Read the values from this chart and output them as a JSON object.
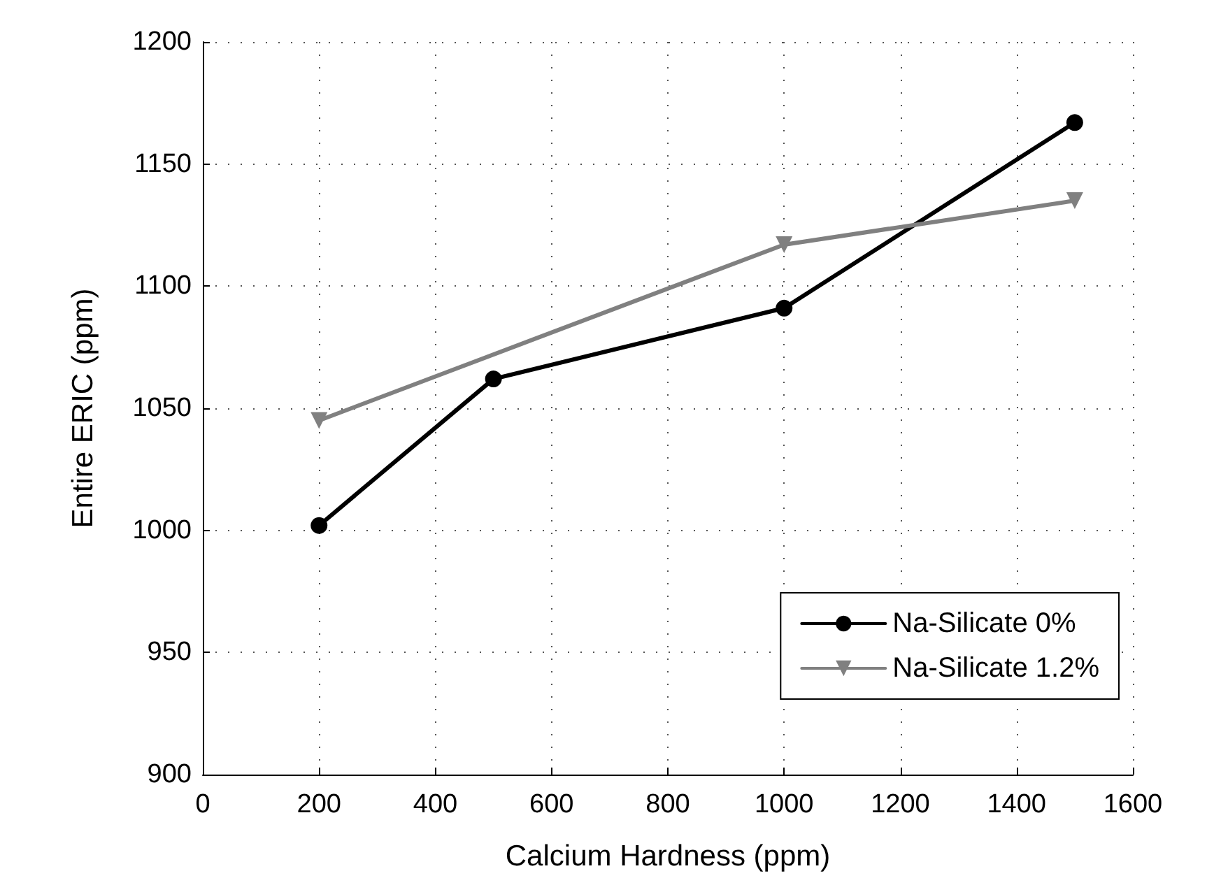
{
  "chart_data": {
    "type": "line",
    "xlabel": "Calcium Hardness (ppm)",
    "ylabel": "Entire ERIC (ppm)",
    "xlim": [
      0,
      1600
    ],
    "xticks": [
      0,
      200,
      400,
      600,
      800,
      1000,
      1200,
      1400,
      1600
    ],
    "ylim": [
      900,
      1200
    ],
    "yticks": [
      900,
      950,
      1000,
      1050,
      1100,
      1150,
      1200
    ],
    "series": [
      {
        "name": "Na-Silicate 0%",
        "color": "#000000",
        "marker": "circle",
        "x": [
          200,
          500,
          1000,
          1500
        ],
        "values": [
          1002,
          1062,
          1091,
          1167
        ]
      },
      {
        "name": "Na-Silicate 1.2%",
        "color": "#808080",
        "marker": "triangle",
        "x": [
          200,
          1000,
          1500
        ],
        "values": [
          1045,
          1117,
          1135
        ]
      }
    ],
    "grid": true,
    "legend": "bottom right",
    "line_style": "solid"
  }
}
